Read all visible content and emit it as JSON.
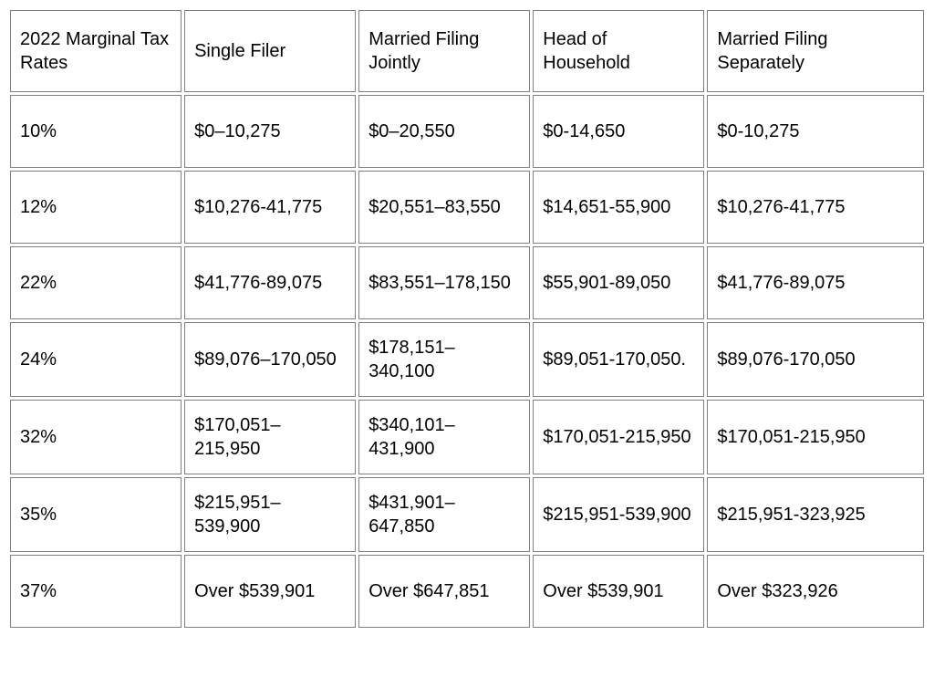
{
  "table": {
    "type": "table",
    "background_color": "#ffffff",
    "border_color": "#808080",
    "text_color": "#000000",
    "font_size": 20,
    "cell_spacing": 3,
    "columns": [
      "2022 Marginal Tax Rates",
      "Single Filer",
      "Married Filing Jointly",
      "Head of Household",
      "Married Filing Separately"
    ],
    "column_widths_pct": [
      19,
      19,
      19,
      19,
      24
    ],
    "rows": [
      [
        "10%",
        "$0–10,275",
        "$0–20,550",
        "$0-14,650",
        "$0-10,275"
      ],
      [
        "12%",
        "$10,276-41,775",
        "$20,551–83,550",
        "$14,651-55,900",
        "$10,276-41,775"
      ],
      [
        "22%",
        "$41,776-89,075",
        "$83,551–178,150",
        "$55,901-89,050",
        "$41,776-89,075"
      ],
      [
        "24%",
        "$89,076–170,050",
        "$178,151–340,100",
        "$89,051-170,050.",
        "$89,076-170,050"
      ],
      [
        "32%",
        "$170,051–215,950",
        "$340,101–431,900",
        "$170,051-215,950",
        "$170,051-215,950"
      ],
      [
        "35%",
        "$215,951–539,900",
        "$431,901–647,850",
        "$215,951-539,900",
        "$215,951-323,925"
      ],
      [
        "37%",
        "Over $539,901",
        "Over $647,851",
        "Over $539,901",
        "Over $323,926"
      ]
    ]
  }
}
